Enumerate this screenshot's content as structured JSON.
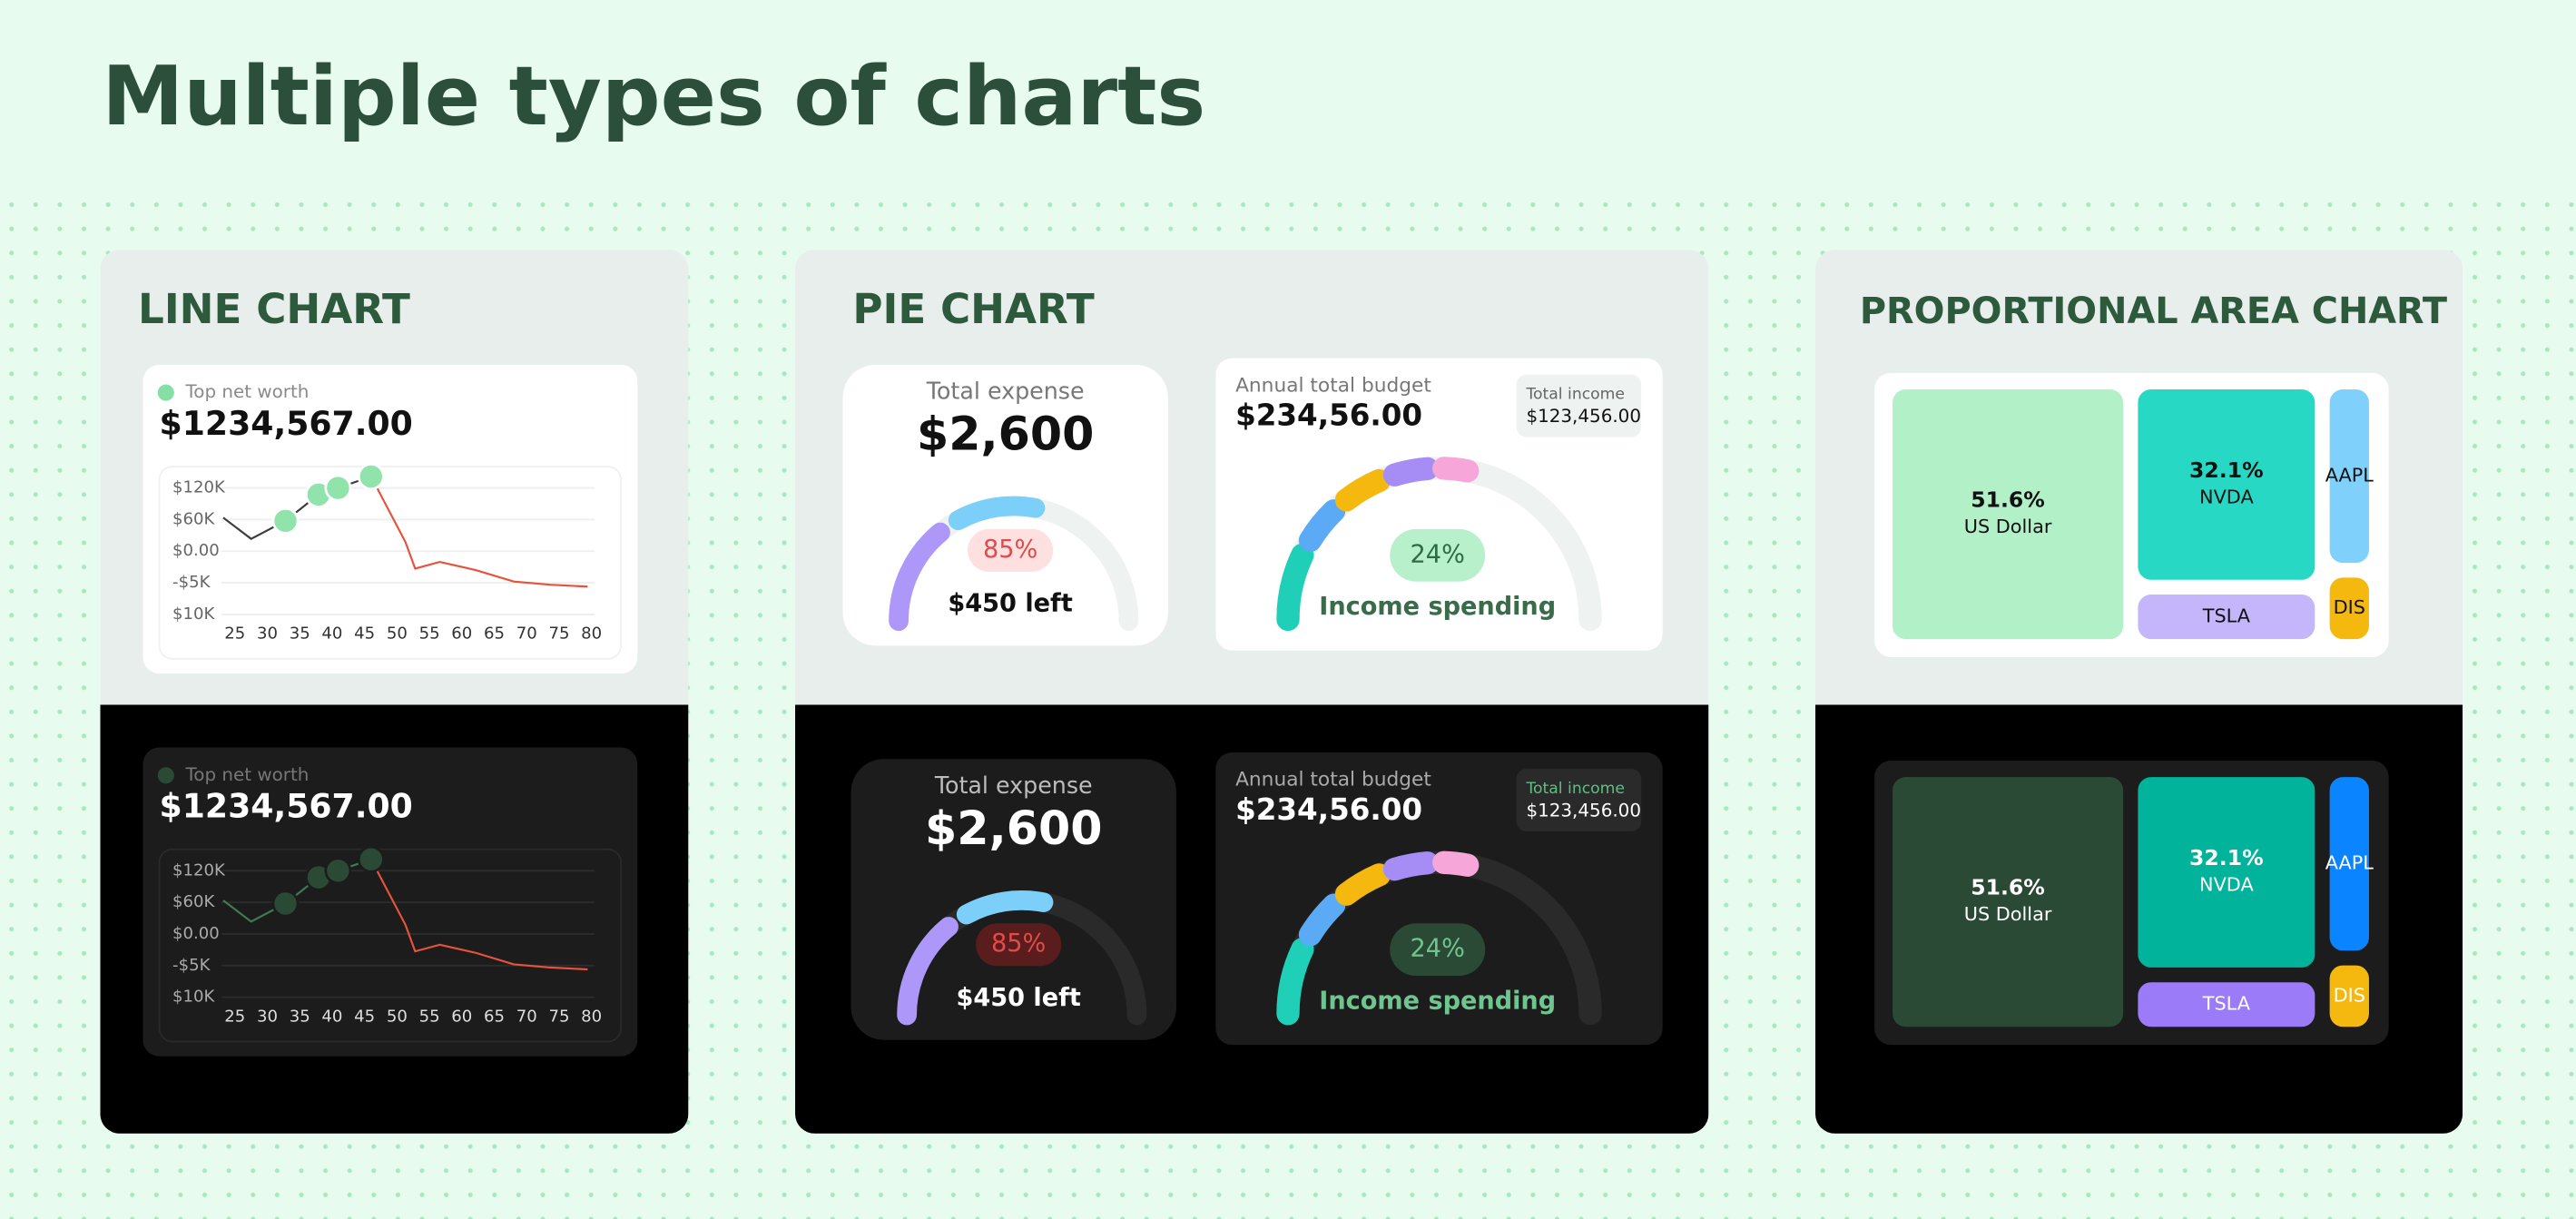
{
  "title": "Multiple types of charts",
  "chart_data": [
    {
      "type": "line",
      "section_title": "LINE CHART",
      "subtitle": "$1234,567.00",
      "x": [
        23.2,
        27.5,
        32.8,
        37.9,
        40.9,
        46,
        51.3,
        52.8,
        56.6,
        62.2,
        68,
        73.6,
        79.4
      ],
      "xlim": [
        21,
        81
      ],
      "xticks": [
        25,
        30,
        35,
        40,
        45,
        50,
        55,
        60,
        65,
        70,
        75,
        80
      ],
      "ycategories": [
        "$10K",
        "-$5K",
        "$0.00",
        "$60K",
        "$120K"
      ],
      "ylim": [
        0,
        4.4
      ],
      "series": [
        {
          "name": "Top net worth",
          "color": "#3d3d3d",
          "values": [
            3.06,
            2.39,
            2.96,
            3.79,
            4.0,
            4.36,
            2.29,
            1.45,
            1.66,
            1.4,
            1.04,
            0.94,
            0.88
          ]
        }
      ],
      "decline_color": "#e5533d",
      "legend_color": "#86e0a6",
      "marker_color": "#8fe3ab",
      "grid": true
    },
    {
      "type": "gauge",
      "section_title": "PIE CHART",
      "title": "Total expense",
      "subtitle": "$2,600",
      "value": 85,
      "value_label": "85%",
      "caption": "$450 left",
      "segments": [
        {
          "value": 28,
          "color": "#ad97f8"
        },
        {
          "value": 22,
          "color": "#7ccff8"
        }
      ],
      "badge_color": "#fde0df",
      "badge_text_color": "#e04b4b"
    },
    {
      "type": "gauge",
      "title": "Annual total budget",
      "subtitle": "$234,56.00",
      "side_title": "Total income",
      "side_value": "$123,456.00",
      "value": 24,
      "value_label": "24%",
      "caption": "Income spending",
      "segments": [
        {
          "value": 14,
          "color": "#1fcfb8"
        },
        {
          "value": 8,
          "color": "#5aaaf6"
        },
        {
          "value": 8,
          "color": "#f5b80e"
        },
        {
          "value": 7,
          "color": "#a58df5"
        },
        {
          "value": 5,
          "color": "#f6a6d8"
        }
      ],
      "badge_color": "#b8f0cb",
      "badge_text_color": "#2d6b45"
    },
    {
      "type": "treemap",
      "section_title": "PROPORTIONAL AREA CHART",
      "categories": [
        "US Dollar",
        "NVDA",
        "AAPL",
        "TSLA",
        "DIS"
      ],
      "values": [
        51.6,
        32.1,
        6.5,
        7.5,
        2.3
      ],
      "value_labels": [
        "51.6%",
        "32.1%",
        null,
        null,
        null
      ],
      "colors": [
        "#b2f0c8",
        "#27d9c4",
        "#7fd1fb",
        "#c5b6fc",
        "#f5b80e"
      ],
      "dark_colors": [
        "#2b4a35",
        "#00b39a",
        "#0a84ff",
        "#9b7bf7",
        "#f5b80e"
      ]
    }
  ]
}
